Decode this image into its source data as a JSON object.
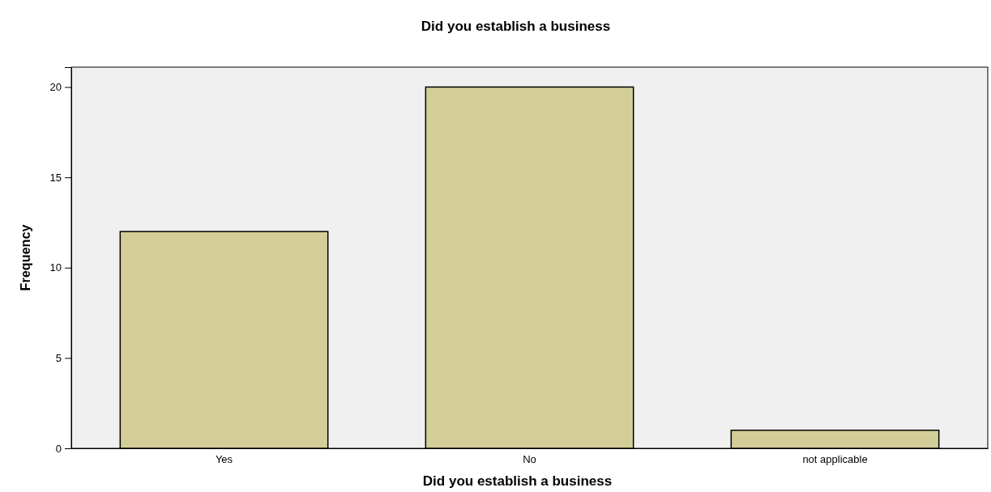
{
  "chart_data": {
    "type": "bar",
    "title": "Did you establish a business",
    "xlabel": "Did you establish a business",
    "ylabel": "Frequency",
    "categories": [
      "Yes",
      "No",
      "not applicable"
    ],
    "values": [
      12,
      20,
      1
    ],
    "color": "#d3ce97",
    "ylim": [
      0,
      21.1
    ],
    "yticks": [
      0,
      5,
      10,
      15,
      20
    ],
    "grid": false
  }
}
